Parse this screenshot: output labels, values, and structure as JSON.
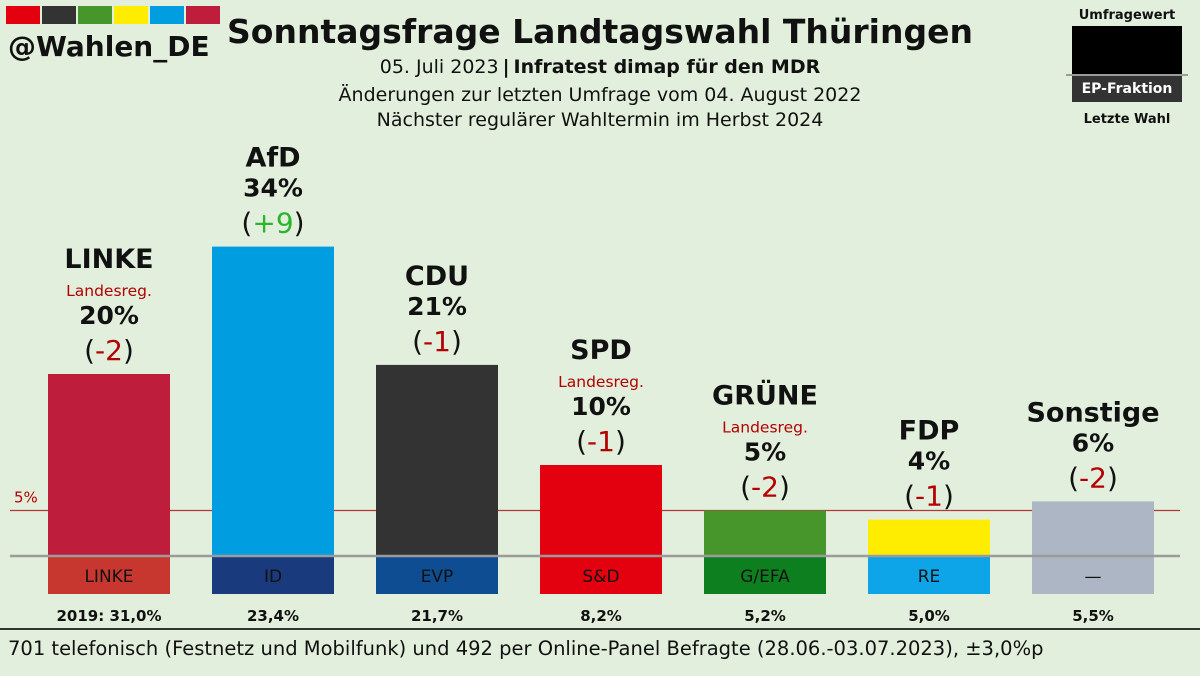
{
  "header": {
    "handle": "@Wahlen_DE",
    "stripe_colors": [
      "#e3000f",
      "#333333",
      "#46962b",
      "#ffed00",
      "#009ee0",
      "#be1e3c"
    ],
    "title": "Sonntagsfrage Landtagswahl Thüringen",
    "date": "05. Juli 2023",
    "separator": "|",
    "institute": "Infratest dimap für den MDR",
    "changes_note": "Änderungen zur letzten Umfrage vom 04. August 2022",
    "next_election": "Nächster regulärer Wahltermin im Herbst 2024"
  },
  "legend": {
    "top_label": "Umfragewert",
    "ep_label": "EP-Fraktion",
    "bottom_label": "Letzte Wahl"
  },
  "chart_data": {
    "type": "bar",
    "ylim": [
      0,
      35
    ],
    "threshold": {
      "value": 5,
      "label": "5%"
    },
    "categories": [
      "LINKE",
      "AfD",
      "CDU",
      "SPD",
      "GRÜNE",
      "FDP",
      "Sonstige"
    ],
    "values": [
      20,
      34,
      21,
      10,
      5,
      4,
      6
    ],
    "value_labels": [
      "20%",
      "34%",
      "21%",
      "10%",
      "5%",
      "4%",
      "6%"
    ],
    "change_labels": [
      "-2",
      "+9",
      "-1",
      "-1",
      "-2",
      "-1",
      "-2"
    ],
    "government_tag": [
      "Landesreg.",
      "",
      "",
      "Landesreg.",
      "Landesreg.",
      "",
      ""
    ],
    "bar_colors": [
      "#be1e3c",
      "#009ee0",
      "#333333",
      "#e3000f",
      "#46962b",
      "#ffed00",
      "#adb6c5"
    ],
    "ep_groups": [
      "LINKE",
      "ID",
      "EVP",
      "S&D",
      "G/EFA",
      "RE",
      "—"
    ],
    "ep_colors": [
      "#c8372f",
      "#1a3a7e",
      "#0e4d91",
      "#e3000f",
      "#0d7f1e",
      "#0ea5e8",
      "#adb6c5"
    ],
    "ep_text_colors": [
      "#111111",
      "#111111",
      "#111111",
      "#111111",
      "#111111",
      "#111111",
      "#111111"
    ],
    "last_election_labels": [
      "2019: 31,0%",
      "23,4%",
      "21,7%",
      "8,2%",
      "5,2%",
      "5,0%",
      "5,5%"
    ],
    "change_colors": {
      "positive": "#2bb52b",
      "negative": "#b30000"
    }
  },
  "footer": "701 telefonisch (Festnetz und Mobilfunk) und 492 per Online-Panel Befragte (28.06.-03.07.2023), ±3,0%p"
}
